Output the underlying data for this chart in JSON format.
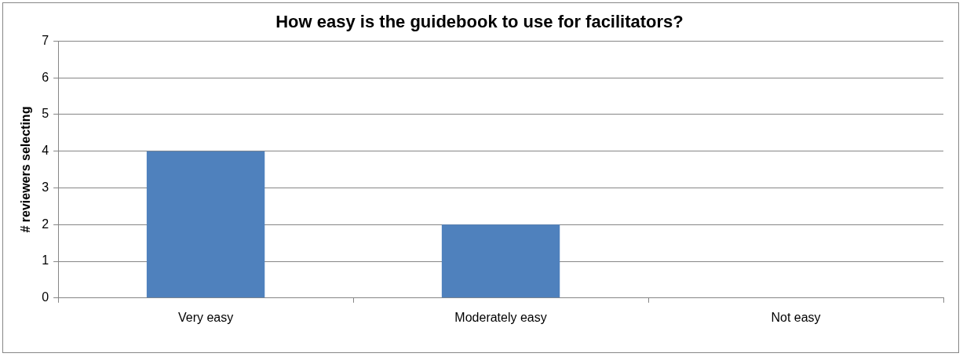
{
  "chart_data": {
    "type": "bar",
    "title": "How easy is the guidebook to use for facilitators?",
    "ylabel": "# reviewers selecting",
    "categories": [
      "Very easy",
      "Moderately easy",
      "Not easy"
    ],
    "values": [
      4,
      2,
      0
    ],
    "color": "#4f81bd",
    "ylim": [
      0,
      7
    ],
    "yticks": [
      0,
      1,
      2,
      3,
      4,
      5,
      6,
      7
    ],
    "grid": "y",
    "legend": false
  }
}
